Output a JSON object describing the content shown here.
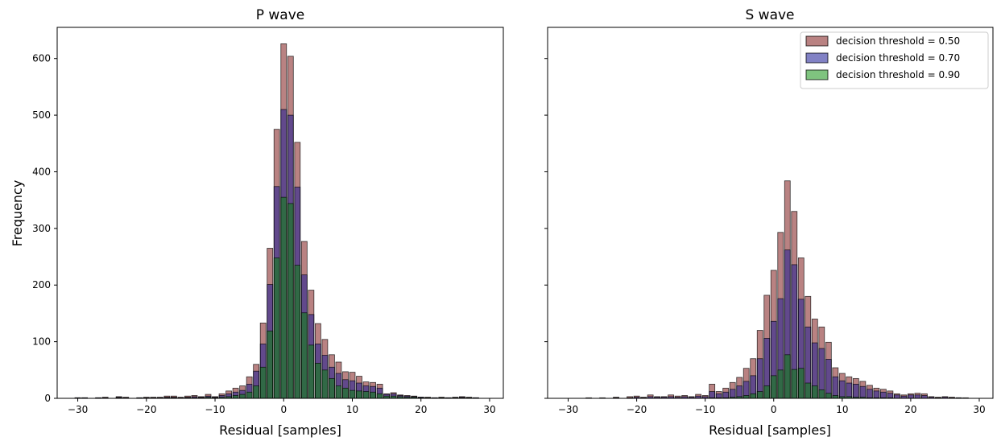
{
  "chart_data": [
    {
      "type": "bar",
      "title": "P wave",
      "xlabel": "Residual [samples]",
      "ylabel": "Frequency",
      "xlim": [
        -33,
        32
      ],
      "ylim": [
        0,
        655
      ],
      "xticks": [
        -30,
        -20,
        -10,
        0,
        10,
        20,
        30
      ],
      "yticks": [
        0,
        100,
        200,
        300,
        400,
        500,
        600
      ],
      "x": [
        -30,
        -29,
        -28,
        -27,
        -26,
        -25,
        -24,
        -23,
        -22,
        -21,
        -20,
        -19,
        -18,
        -17,
        -16,
        -15,
        -14,
        -13,
        -12,
        -11,
        -10,
        -9,
        -8,
        -7,
        -6,
        -5,
        -4,
        -3,
        -2,
        -1,
        0,
        1,
        2,
        3,
        4,
        5,
        6,
        7,
        8,
        9,
        10,
        11,
        12,
        13,
        14,
        15,
        16,
        17,
        18,
        19,
        20,
        21,
        22,
        23,
        24,
        25,
        26,
        27,
        28
      ],
      "series": [
        {
          "name": "decision threshold =  0.50",
          "color": "#8b2e2e",
          "values": [
            1,
            1,
            0,
            1,
            2,
            0,
            3,
            2,
            0,
            1,
            2,
            2,
            2,
            4,
            4,
            2,
            4,
            5,
            3,
            7,
            3,
            8,
            13,
            18,
            22,
            38,
            60,
            133,
            265,
            475,
            626,
            604,
            452,
            277,
            191,
            132,
            104,
            77,
            64,
            47,
            46,
            39,
            29,
            28,
            25,
            8,
            10,
            6,
            5,
            4,
            2,
            2,
            1,
            2,
            1,
            2,
            3,
            2,
            1
          ]
        },
        {
          "name": "decision threshold =  0.70",
          "color": "#1b1b96",
          "values": [
            1,
            1,
            0,
            1,
            1,
            0,
            2,
            1,
            0,
            1,
            1,
            1,
            1,
            2,
            2,
            1,
            2,
            3,
            2,
            4,
            2,
            5,
            8,
            11,
            14,
            25,
            48,
            96,
            201,
            374,
            510,
            500,
            373,
            218,
            148,
            96,
            76,
            55,
            44,
            33,
            31,
            27,
            22,
            21,
            18,
            7,
            8,
            5,
            4,
            3,
            2,
            1,
            1,
            1,
            1,
            1,
            2,
            1,
            1
          ]
        },
        {
          "name": "decision threshold =  0.90",
          "color": "#008a00",
          "values": [
            0,
            0,
            0,
            0,
            0,
            0,
            1,
            0,
            0,
            0,
            0,
            0,
            0,
            1,
            1,
            0,
            1,
            1,
            1,
            2,
            1,
            2,
            3,
            5,
            7,
            11,
            22,
            55,
            119,
            248,
            355,
            344,
            235,
            151,
            94,
            62,
            50,
            35,
            22,
            18,
            14,
            13,
            12,
            11,
            8,
            4,
            4,
            3,
            2,
            2,
            1,
            1,
            0,
            1,
            0,
            1,
            1,
            1,
            0
          ]
        }
      ]
    },
    {
      "type": "bar",
      "title": "S wave",
      "xlabel": "Residual [samples]",
      "ylabel": "",
      "xlim": [
        -33,
        32
      ],
      "ylim": [
        0,
        655
      ],
      "xticks": [
        -30,
        -20,
        -10,
        0,
        10,
        20,
        30
      ],
      "yticks": [
        0,
        100,
        200,
        300,
        400,
        500,
        600
      ],
      "legend_position": "top-right",
      "x": [
        -30,
        -29,
        -28,
        -27,
        -26,
        -25,
        -24,
        -23,
        -22,
        -21,
        -20,
        -19,
        -18,
        -17,
        -16,
        -15,
        -14,
        -13,
        -12,
        -11,
        -10,
        -9,
        -8,
        -7,
        -6,
        -5,
        -4,
        -3,
        -2,
        -1,
        0,
        1,
        2,
        3,
        4,
        5,
        6,
        7,
        8,
        9,
        10,
        11,
        12,
        13,
        14,
        15,
        16,
        17,
        18,
        19,
        20,
        21,
        22,
        23,
        24,
        25,
        26,
        27,
        28
      ],
      "series": [
        {
          "name": "decision threshold =  0.50",
          "color": "#8b2e2e",
          "values": [
            0,
            0,
            0,
            1,
            0,
            1,
            0,
            2,
            0,
            3,
            4,
            2,
            6,
            3,
            3,
            6,
            4,
            5,
            3,
            7,
            5,
            25,
            12,
            18,
            28,
            37,
            53,
            70,
            120,
            182,
            226,
            293,
            384,
            330,
            248,
            180,
            140,
            126,
            99,
            54,
            44,
            38,
            35,
            30,
            23,
            18,
            16,
            13,
            8,
            6,
            8,
            9,
            8,
            3,
            2,
            3,
            2,
            1,
            1
          ]
        },
        {
          "name": "decision threshold =  0.70",
          "color": "#1b1b96",
          "values": [
            0,
            0,
            0,
            0,
            0,
            0,
            0,
            1,
            0,
            1,
            2,
            1,
            3,
            2,
            2,
            3,
            2,
            3,
            2,
            4,
            3,
            12,
            8,
            11,
            16,
            22,
            30,
            40,
            70,
            106,
            136,
            176,
            262,
            236,
            175,
            126,
            98,
            88,
            69,
            38,
            31,
            27,
            25,
            21,
            16,
            13,
            11,
            9,
            6,
            4,
            6,
            6,
            5,
            2,
            1,
            2,
            1,
            1,
            0
          ]
        },
        {
          "name": "decision threshold =  0.90",
          "color": "#008a00",
          "values": [
            0,
            0,
            0,
            0,
            0,
            0,
            0,
            0,
            0,
            0,
            0,
            0,
            0,
            0,
            0,
            0,
            0,
            0,
            0,
            0,
            0,
            1,
            1,
            1,
            2,
            3,
            5,
            8,
            12,
            22,
            40,
            50,
            77,
            51,
            53,
            27,
            22,
            15,
            9,
            5,
            3,
            3,
            2,
            2,
            1,
            1,
            1,
            1,
            0,
            0,
            0,
            0,
            0,
            0,
            0,
            0,
            0,
            0,
            0
          ]
        }
      ]
    }
  ]
}
